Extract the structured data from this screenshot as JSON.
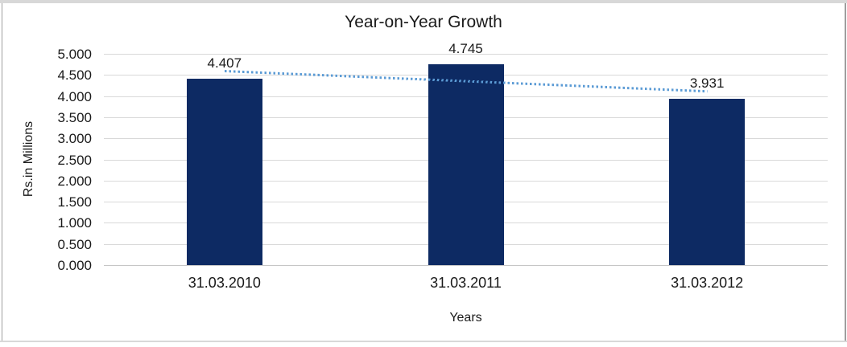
{
  "chart_data": {
    "type": "bar",
    "title": "Year-on-Year Growth",
    "xlabel": "Years",
    "ylabel": "Rs.in Millions",
    "categories": [
      "31.03.2010",
      "31.03.2011",
      "31.03.2012"
    ],
    "series": [
      {
        "name": "Rs.in Millions",
        "values": [
          4.407,
          4.745,
          3.931
        ]
      }
    ],
    "value_labels": [
      "4.407",
      "4.745",
      "3.931"
    ],
    "ylim": [
      0,
      5
    ],
    "ytick_step": 0.5,
    "ytick_labels": [
      "0.000",
      "0.500",
      "1.000",
      "1.500",
      "2.000",
      "2.500",
      "3.000",
      "3.500",
      "4.000",
      "4.500",
      "5.000"
    ],
    "grid": true,
    "legend": false,
    "trendline": {
      "style": "dotted",
      "start_value": 4.59,
      "end_value": 4.11,
      "color": "#5b9bd5"
    },
    "colors": {
      "bar": "#0d2a63",
      "gridline": "#d9d9d9",
      "axis_line": "#c6c6c6",
      "text": "#1a1a1a",
      "frame_light": "#d8d8d8",
      "frame_dark": "#9e9e9e",
      "background": "#ffffff"
    }
  }
}
